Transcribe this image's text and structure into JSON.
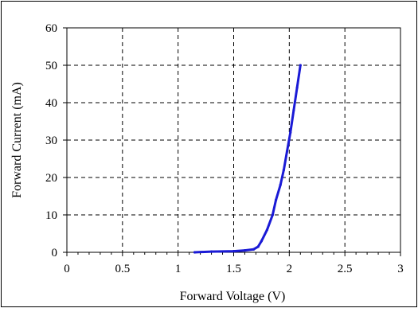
{
  "chart_data": {
    "type": "line",
    "title": "",
    "xlabel": "Forward Voltage (V)",
    "ylabel": "Forward Current (mA)",
    "xlim": [
      0,
      3
    ],
    "ylim": [
      0,
      60
    ],
    "x_ticks": [
      "0",
      "0.5",
      "1",
      "1.5",
      "2",
      "2.5",
      "3"
    ],
    "y_ticks": [
      "0",
      "10",
      "20",
      "30",
      "40",
      "50",
      "60"
    ],
    "grid": true,
    "grid_style": "dashed",
    "legend": "none",
    "series_color": "#1a1ad6",
    "series": [
      {
        "x": [
          1.15,
          1.3,
          1.5,
          1.6,
          1.68,
          1.72,
          1.75,
          1.8,
          1.85,
          1.88,
          1.92,
          1.95,
          1.98,
          2.01,
          2.04,
          2.07,
          2.1
        ],
        "y": [
          0,
          0.2,
          0.3,
          0.5,
          0.8,
          1.5,
          3,
          6,
          10,
          14,
          18,
          22,
          27,
          32,
          38,
          44,
          50
        ]
      }
    ]
  }
}
